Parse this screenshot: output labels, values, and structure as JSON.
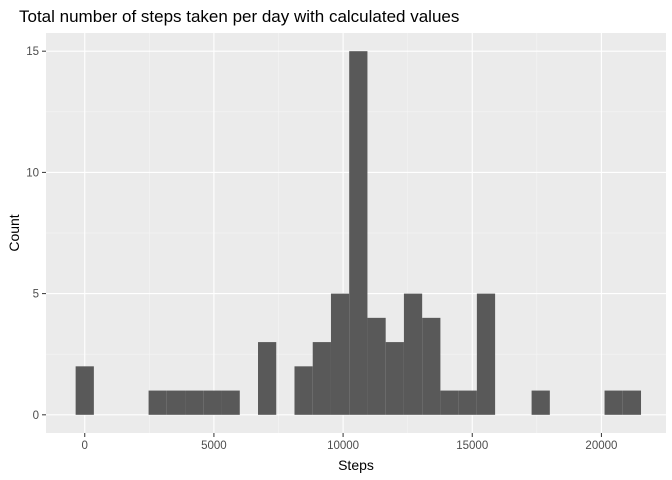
{
  "chart_data": {
    "type": "bar",
    "subtype": "histogram",
    "title": "Total number of steps taken per day with calculated values",
    "xlabel": "Steps",
    "ylabel": "Count",
    "xlim": [
      -1500,
      22500
    ],
    "ylim": [
      -0.75,
      15.75
    ],
    "x_ticks": [
      0,
      5000,
      10000,
      15000,
      20000
    ],
    "x_tick_labels": [
      "0",
      "5000",
      "10000",
      "15000",
      "20000"
    ],
    "y_ticks": [
      0,
      5,
      10,
      15
    ],
    "y_tick_labels": [
      "0",
      "5",
      "10",
      "15"
    ],
    "bin_width": 706,
    "grid": true,
    "legend": "none",
    "colors": {
      "panel_background": "#EBEBEB",
      "grid_major": "#FFFFFF",
      "grid_minor": "#F5F5F5",
      "bar_fill": "#595959",
      "tick_color": "#333333",
      "tick_label_color": "#4D4D4D"
    },
    "bins": [
      {
        "x": 0,
        "count": 2
      },
      {
        "x": 706,
        "count": 0
      },
      {
        "x": 1412,
        "count": 0
      },
      {
        "x": 2118,
        "count": 0
      },
      {
        "x": 2824,
        "count": 1
      },
      {
        "x": 3530,
        "count": 1
      },
      {
        "x": 4236,
        "count": 1
      },
      {
        "x": 4942,
        "count": 1
      },
      {
        "x": 5648,
        "count": 1
      },
      {
        "x": 6354,
        "count": 0
      },
      {
        "x": 7060,
        "count": 3
      },
      {
        "x": 7766,
        "count": 0
      },
      {
        "x": 8472,
        "count": 2
      },
      {
        "x": 9178,
        "count": 3
      },
      {
        "x": 9884,
        "count": 5
      },
      {
        "x": 10590,
        "count": 15
      },
      {
        "x": 11296,
        "count": 4
      },
      {
        "x": 12002,
        "count": 3
      },
      {
        "x": 12708,
        "count": 5
      },
      {
        "x": 13414,
        "count": 4
      },
      {
        "x": 14120,
        "count": 1
      },
      {
        "x": 14826,
        "count": 1
      },
      {
        "x": 15532,
        "count": 5
      },
      {
        "x": 16238,
        "count": 0
      },
      {
        "x": 16944,
        "count": 0
      },
      {
        "x": 17650,
        "count": 1
      },
      {
        "x": 18356,
        "count": 0
      },
      {
        "x": 19062,
        "count": 0
      },
      {
        "x": 19768,
        "count": 0
      },
      {
        "x": 20474,
        "count": 1
      },
      {
        "x": 21180,
        "count": 1
      }
    ]
  }
}
